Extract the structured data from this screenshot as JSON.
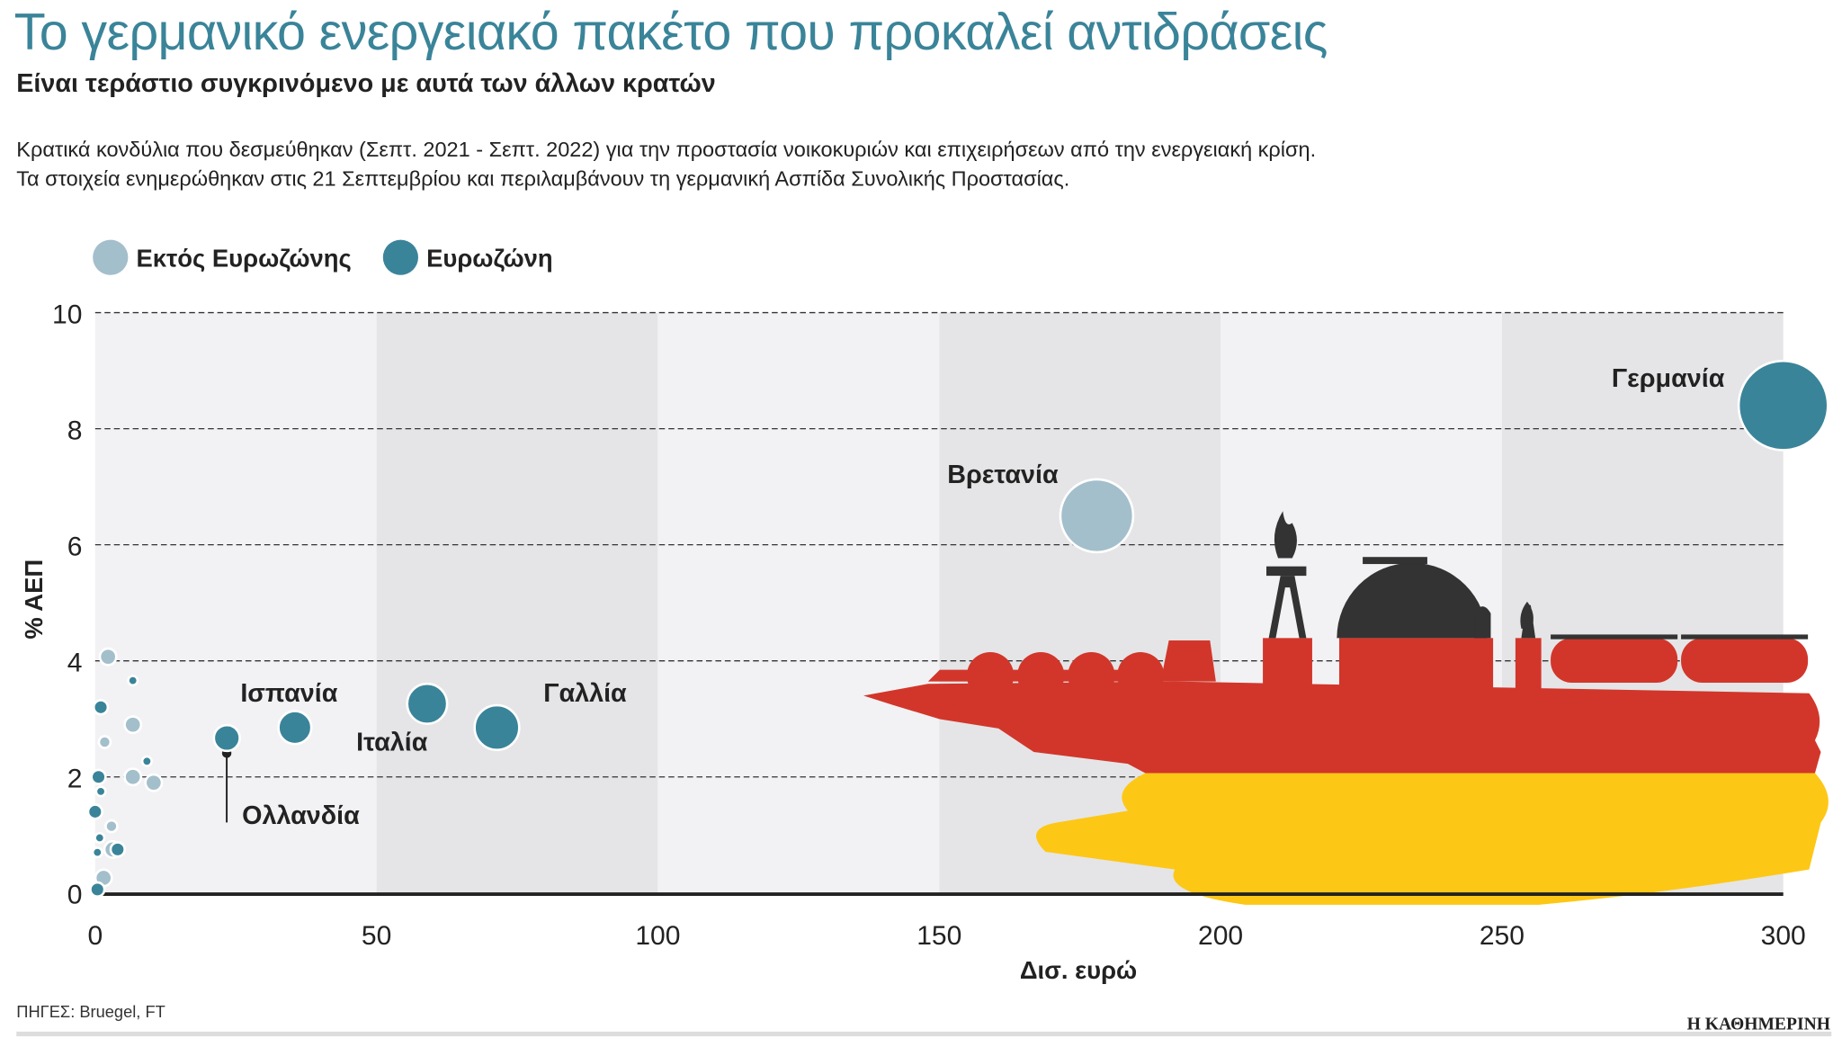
{
  "header": {
    "title": "Το γερμανικό ενεργειακό πακέτο που προκαλεί αντιδράσεις",
    "subtitle": "Είναι τεράστιο συγκρινόμενο με αυτά των άλλων κρατών",
    "description_line1": "Κρατικά κονδύλια που δεσμεύθηκαν (Σεπτ. 2021 - Σεπτ. 2022) για την προστασία νοικοκυριών και επιχειρήσεων από την ενεργειακή κρίση.",
    "description_line2": "Τα στοιχεία ενημερώθηκαν στις 21 Σεπτεμβρίου και περιλαμβάνουν τη γερμανική Ασπίδα Συνολικής Προστασίας."
  },
  "footer": {
    "source": "ΠΗΓΕΣ: Bruegel, FT",
    "brand": "Η ΚΑΘΗΜΕΡΙΝΗ"
  },
  "chart_data": {
    "type": "scatter",
    "subtype": "bubble",
    "xlabel": "Δισ. ευρώ",
    "ylabel": "% ΑΕΠ",
    "xlim": [
      0,
      300
    ],
    "ylim": [
      0,
      10
    ],
    "xticks": [
      "0",
      "50",
      "100",
      "150",
      "200",
      "250",
      "300"
    ],
    "yticks": [
      "0",
      "2",
      "4",
      "6",
      "8",
      "10"
    ],
    "grid": "horizontal dashed, alternating vertical bands",
    "legend_placement": "top-left",
    "colors": {
      "non_eurozone": "#a3bfcb",
      "eurozone": "#3a8499",
      "bg_light": "#f2f2f4",
      "bg_dark": "#e5e5e7",
      "red": "#d2362a",
      "yellow": "#fdc716",
      "black": "#333333"
    },
    "series": [
      {
        "name": "Εκτός Ευρωζώνης",
        "color": "#a3bfcb",
        "points": [
          {
            "label": "Βρετανία",
            "x": 178,
            "y": 6.5
          },
          {
            "x": 2.3,
            "y": 4.07
          },
          {
            "x": 6.7,
            "y": 2.9
          },
          {
            "x": 1.7,
            "y": 2.6
          },
          {
            "x": 6.7,
            "y": 2.0
          },
          {
            "x": 10.4,
            "y": 1.9
          },
          {
            "x": 2.9,
            "y": 1.15
          },
          {
            "x": 3.1,
            "y": 0.75
          },
          {
            "x": 1.5,
            "y": 0.26
          }
        ]
      },
      {
        "name": "Ευρωζώνη",
        "color": "#3a8499",
        "points": [
          {
            "label": "Γερμανία",
            "x": 300,
            "y": 8.4
          },
          {
            "label": "Γαλλία",
            "x": 71.4,
            "y": 2.85
          },
          {
            "label": "Ιταλία",
            "x": 59,
            "y": 3.26
          },
          {
            "label": "Ισπανία",
            "x": 35.5,
            "y": 2.85
          },
          {
            "label": "Ολλανδία",
            "x": 23.4,
            "y": 2.67
          },
          {
            "x": 6.7,
            "y": 3.66
          },
          {
            "x": 1.0,
            "y": 3.2
          },
          {
            "x": 9.2,
            "y": 2.27
          },
          {
            "x": 0.6,
            "y": 2.0
          },
          {
            "x": 1.0,
            "y": 1.75
          },
          {
            "x": 0.0,
            "y": 1.4
          },
          {
            "x": 0.8,
            "y": 0.95
          },
          {
            "x": 4.0,
            "y": 0.75
          },
          {
            "x": 0.4,
            "y": 0.7
          },
          {
            "x": 0.4,
            "y": 0.06
          }
        ]
      }
    ]
  }
}
